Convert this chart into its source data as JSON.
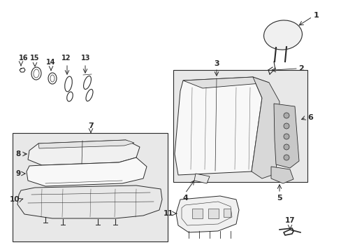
{
  "bg": "#ffffff",
  "box_bg": "#e8e8e8",
  "lc": "#2a2a2a",
  "fig_w": 4.89,
  "fig_h": 3.6,
  "dpi": 100
}
